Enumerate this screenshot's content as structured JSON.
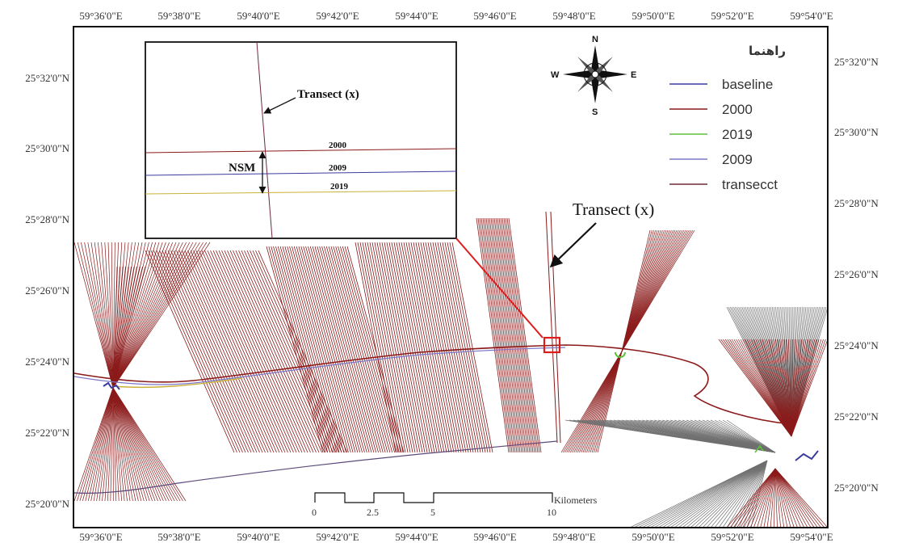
{
  "map": {
    "x_ticks": [
      "59°36'0\"E",
      "59°38'0\"E",
      "59°40'0\"E",
      "59°42'0\"E",
      "59°44'0\"E",
      "59°46'0\"E",
      "59°48'0\"E",
      "59°50'0\"E",
      "59°52'0\"E",
      "59°54'0\"E"
    ],
    "y_ticks": [
      "25°32'0\"N",
      "25°30'0\"N",
      "25°28'0\"N",
      "25°26'0\"N",
      "25°24'0\"N",
      "25°22'0\"N",
      "25°20'0\"N"
    ]
  },
  "legend": {
    "title": "راهنما",
    "items": [
      {
        "label": "baseline",
        "color": "#3a3aa0"
      },
      {
        "label": "2000",
        "color": "#8b1a1a"
      },
      {
        "label": "2019",
        "color": "#5cc23a"
      },
      {
        "label": "2009",
        "color": "#7a78c8"
      },
      {
        "label": "transecct",
        "color": "#6e2a3a"
      }
    ]
  },
  "compass": {
    "n": "N",
    "s": "S",
    "e": "E",
    "w": "W"
  },
  "inset": {
    "transect_label": "Transect (x)",
    "nsm_label": "NSM",
    "line_2000": "2000",
    "line_2009": "2009",
    "line_2019": "2019"
  },
  "callout": {
    "label": "Transect (x)"
  },
  "scale": {
    "ticks": [
      "0",
      "2.5",
      "5",
      "10"
    ],
    "unit": "Kilometers"
  }
}
